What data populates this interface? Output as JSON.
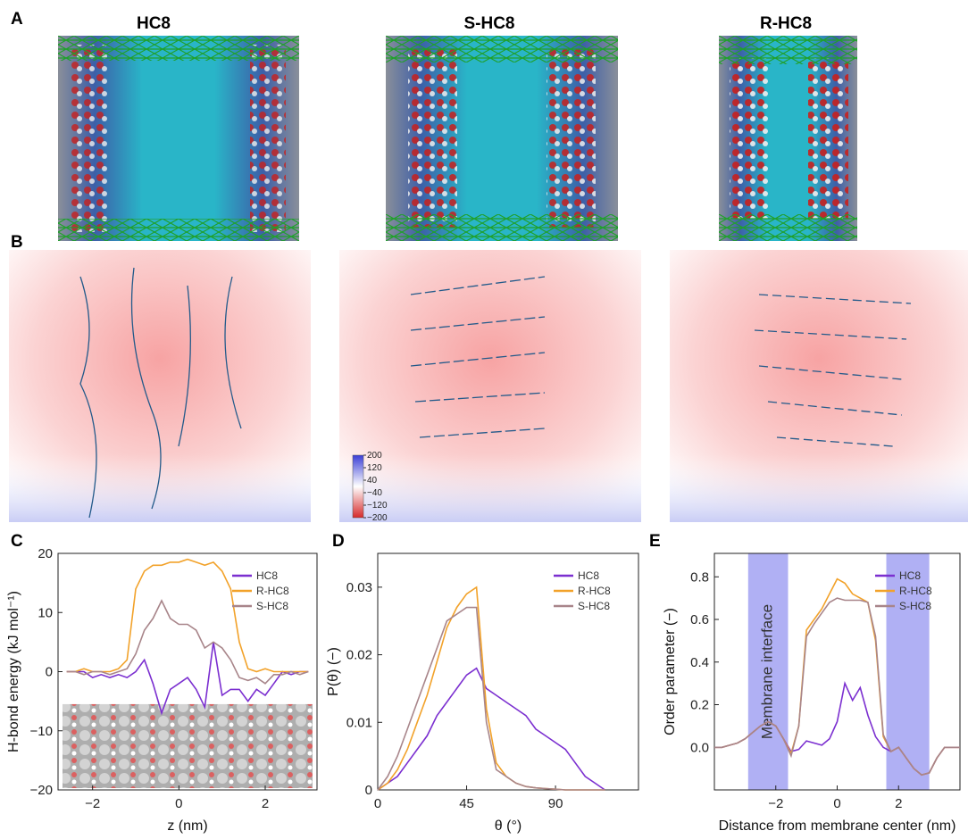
{
  "panel_labels": [
    "A",
    "B",
    "C",
    "D",
    "E"
  ],
  "structure_titles": [
    "HC8",
    "S-HC8",
    "R-HC8"
  ],
  "colorbar": {
    "lim": [
      -200,
      200
    ],
    "ticks": [
      200,
      120,
      40,
      {
        "value": -40,
        "label": "−40"
      },
      {
        "value": -120,
        "label": "−120"
      },
      {
        "value": -200,
        "label": "−200"
      }
    ]
  },
  "chart_data": [
    {
      "type": "line",
      "xlabel": "z (nm)",
      "ylabel": "H-bond energy (kJ mol⁻¹)",
      "xlim": [
        -2.8,
        3.2
      ],
      "xticks": [
        {
          "value": -2,
          "label": "−2"
        },
        0,
        2
      ],
      "ylim": [
        -20,
        20
      ],
      "yticks": [
        {
          "value": -20,
          "label": "−20"
        },
        {
          "value": -10,
          "label": "−10"
        },
        0,
        10,
        20
      ],
      "legend": "upper right",
      "x": [
        -2.6,
        -2.4,
        -2.2,
        -2.0,
        -1.8,
        -1.6,
        -1.4,
        -1.2,
        -1.0,
        -0.8,
        -0.6,
        -0.4,
        -0.2,
        0,
        0.2,
        0.4,
        0.6,
        0.8,
        1.0,
        1.2,
        1.4,
        1.6,
        1.8,
        2.0,
        2.2,
        2.4,
        2.6,
        2.8,
        3.0
      ],
      "series": [
        {
          "name": "HC8",
          "color": "#7b2fd0",
          "values": [
            0,
            0,
            0,
            -1,
            -0.5,
            -1,
            -0.5,
            -1,
            0,
            2,
            -2,
            -7,
            -3,
            -2,
            -1,
            -3,
            -6,
            5,
            -4,
            -3,
            -3,
            -5,
            -3,
            -4,
            -2,
            0,
            -0.5,
            0,
            0
          ]
        },
        {
          "name": "R-HC8",
          "color": "#f2a22a",
          "values": [
            0,
            0,
            0.5,
            0,
            0,
            0,
            0.5,
            2,
            14,
            17,
            18,
            18,
            18.5,
            18.5,
            19,
            18.5,
            18,
            18.5,
            17,
            14,
            5,
            0.5,
            0,
            0.5,
            0,
            0,
            0,
            0,
            0
          ]
        },
        {
          "name": "S-HC8",
          "color": "#a8858a",
          "values": [
            0,
            0,
            -0.5,
            0,
            0,
            -0.5,
            0,
            0.5,
            3,
            7,
            9,
            12,
            9,
            8,
            8,
            7,
            4,
            5,
            4,
            2,
            -1,
            -1.5,
            -1,
            -2,
            -0.5,
            -0.5,
            0,
            -0.5,
            0
          ]
        }
      ]
    },
    {
      "type": "line",
      "xlabel": "θ (°)",
      "ylabel": "P(θ) (−)",
      "xlim": [
        0,
        132
      ],
      "xticks": [
        0,
        45,
        90
      ],
      "ylim": [
        0,
        0.035
      ],
      "yticks": [
        0,
        0.01,
        0.02,
        0.03
      ],
      "legend": "upper right",
      "x": [
        0,
        5,
        10,
        15,
        20,
        25,
        30,
        35,
        40,
        45,
        50,
        55,
        60,
        65,
        70,
        75,
        80,
        85,
        90,
        95,
        100,
        105,
        110,
        115
      ],
      "series": [
        {
          "name": "HC8",
          "color": "#7b2fd0",
          "values": [
            0,
            0.001,
            0.002,
            0.004,
            0.006,
            0.008,
            0.011,
            0.013,
            0.015,
            0.017,
            0.018,
            0.015,
            0.014,
            0.013,
            0.012,
            0.011,
            0.009,
            0.008,
            0.007,
            0.006,
            0.004,
            0.002,
            0.001,
            0
          ]
        },
        {
          "name": "R-HC8",
          "color": "#f2a22a",
          "values": [
            0,
            0.001,
            0.003,
            0.006,
            0.01,
            0.014,
            0.019,
            0.024,
            0.027,
            0.029,
            0.03,
            0.012,
            0.004,
            0.002,
            0.001,
            0.0005,
            0.0003,
            0.0002,
            0.0001,
            0,
            0,
            0,
            0,
            0
          ]
        },
        {
          "name": "S-HC8",
          "color": "#a8858a",
          "values": [
            0,
            0.002,
            0.005,
            0.009,
            0.013,
            0.017,
            0.021,
            0.025,
            0.026,
            0.027,
            0.027,
            0.01,
            0.003,
            0.002,
            0.001,
            0.0005,
            0.0003,
            0.0002,
            0.0001,
            0,
            0,
            0,
            0,
            0
          ]
        }
      ]
    },
    {
      "type": "line",
      "xlabel": "Distance from membrane center (nm)",
      "ylabel": "Order parameter (−)",
      "annotation": "Membrane interface",
      "interface_regions": [
        [
          -2.9,
          -1.6
        ],
        [
          1.6,
          3.0
        ]
      ],
      "xlim": [
        -4,
        4
      ],
      "xticks": [
        {
          "value": -2,
          "label": "−2"
        },
        0,
        2
      ],
      "ylim": [
        -0.2,
        0.91
      ],
      "yticks": [
        {
          "value": 0,
          "label": "0.0"
        },
        0.2,
        0.4,
        0.6,
        0.8
      ],
      "legend": "upper right",
      "x": [
        -4,
        -3.75,
        -3.5,
        -3.25,
        -3,
        -2.75,
        -2.5,
        -2.25,
        -2,
        -1.75,
        -1.5,
        -1.25,
        -1,
        -0.75,
        -0.5,
        -0.25,
        0,
        0.25,
        0.5,
        0.75,
        1,
        1.25,
        1.5,
        1.75,
        2,
        2.25,
        2.5,
        2.75,
        3,
        3.25,
        3.5,
        3.75,
        4
      ],
      "series": [
        {
          "name": "HC8",
          "color": "#7b2fd0",
          "values": [
            0,
            0,
            0.01,
            0.02,
            0.04,
            0.07,
            0.1,
            0.12,
            0.1,
            0.04,
            -0.02,
            -0.01,
            0.03,
            0.02,
            0.01,
            0.04,
            0.12,
            0.3,
            0.22,
            0.28,
            0.15,
            0.05,
            0,
            -0.02,
            0,
            -0.05,
            -0.1,
            -0.13,
            -0.12,
            -0.05,
            0,
            0,
            0
          ]
        },
        {
          "name": "R-HC8",
          "color": "#f2a22a",
          "values": [
            0,
            0,
            0.01,
            0.02,
            0.04,
            0.07,
            0.1,
            0.12,
            0.1,
            0.04,
            -0.03,
            0.1,
            0.55,
            0.6,
            0.65,
            0.72,
            0.79,
            0.77,
            0.72,
            0.7,
            0.68,
            0.5,
            0.05,
            -0.02,
            0,
            -0.05,
            -0.1,
            -0.13,
            -0.12,
            -0.05,
            0,
            0,
            0
          ]
        },
        {
          "name": "S-HC8",
          "color": "#a8858a",
          "values": [
            0,
            0,
            0.01,
            0.02,
            0.04,
            0.07,
            0.1,
            0.12,
            0.1,
            0.04,
            -0.04,
            0.1,
            0.52,
            0.58,
            0.63,
            0.68,
            0.7,
            0.69,
            0.69,
            0.69,
            0.68,
            0.52,
            0.06,
            -0.02,
            0,
            -0.05,
            -0.1,
            -0.13,
            -0.12,
            -0.05,
            0,
            0,
            0
          ]
        }
      ]
    }
  ]
}
